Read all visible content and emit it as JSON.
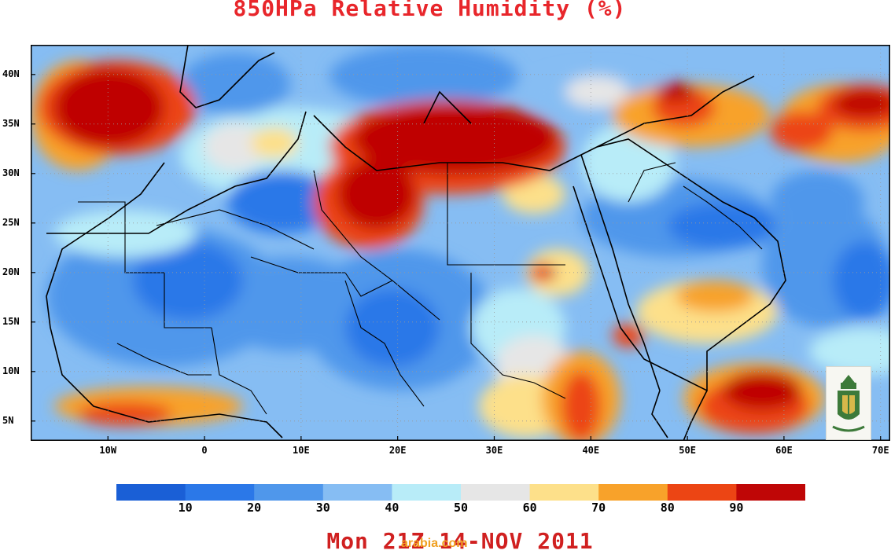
{
  "title": "850HPa Relative Humidity (%)",
  "date_label": "Mon 21Z 14-NOV 2011",
  "watermark": "arabia.com",
  "map": {
    "lon_range": [
      -18,
      71
    ],
    "lat_range": [
      3,
      43
    ],
    "lat_ticks": [
      "40N",
      "35N",
      "30N",
      "25N",
      "20N",
      "15N",
      "10N",
      "5N"
    ],
    "lat_tick_values": [
      40,
      35,
      30,
      25,
      20,
      15,
      10,
      5
    ],
    "lon_ticks": [
      "10W",
      "0",
      "10E",
      "20E",
      "30E",
      "40E",
      "50E",
      "60E",
      "70E"
    ],
    "lon_tick_values": [
      -10,
      0,
      10,
      20,
      30,
      40,
      50,
      60,
      70
    ]
  },
  "colorbar": {
    "labels": [
      "10",
      "20",
      "30",
      "40",
      "50",
      "60",
      "70",
      "80",
      "90"
    ],
    "colors": [
      "#1a5fd6",
      "#2b78e8",
      "#4f97eb",
      "#86bdf3",
      "#b8ecf8",
      "#e6e6e6",
      "#fde08a",
      "#f8a22a",
      "#ec4514",
      "#bf0606"
    ]
  },
  "logo": {
    "name": "university-seal-icon"
  }
}
